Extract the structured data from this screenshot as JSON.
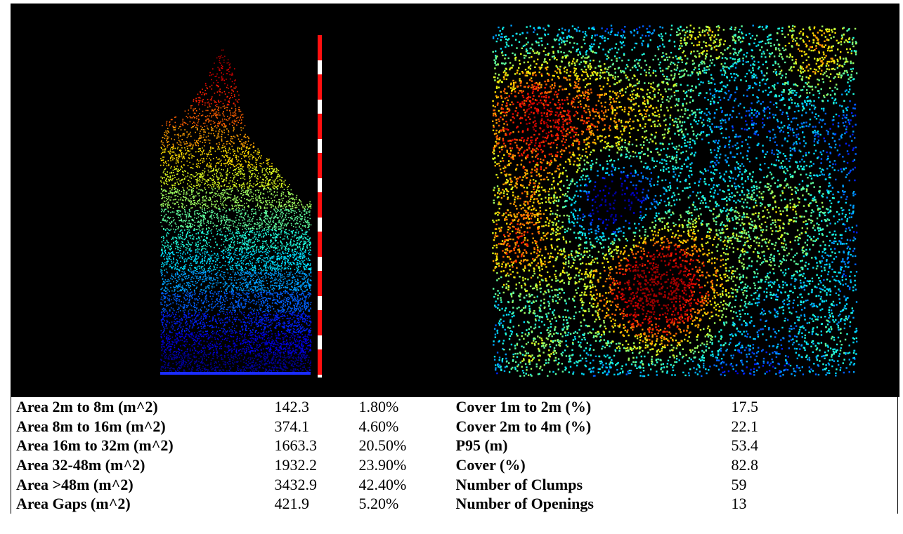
{
  "table": {
    "rows": [
      [
        "Area 2m to 8m (m^2)",
        "142.3",
        "1.80%",
        "Cover 1m to 2m (%)",
        "17.5"
      ],
      [
        "Area 8m to 16m (m^2)",
        "374.1",
        "4.60%",
        "Cover 2m to 4m (%)",
        "22.1"
      ],
      [
        "Area 16m to 32m (m^2)",
        "1663.3",
        "20.50%",
        "P95 (m)",
        "53.4"
      ],
      [
        "Area 32-48m (m^2)",
        "1932.2",
        "23.90%",
        "Cover (%)",
        "82.8"
      ],
      [
        "Area >48m (m^2)",
        "3432.9",
        "42.40%",
        "Number of Clumps",
        "59"
      ],
      [
        "Area Gaps (m^2)",
        "421.9",
        "5.20%",
        "Number of Openings",
        "13"
      ]
    ]
  }
}
